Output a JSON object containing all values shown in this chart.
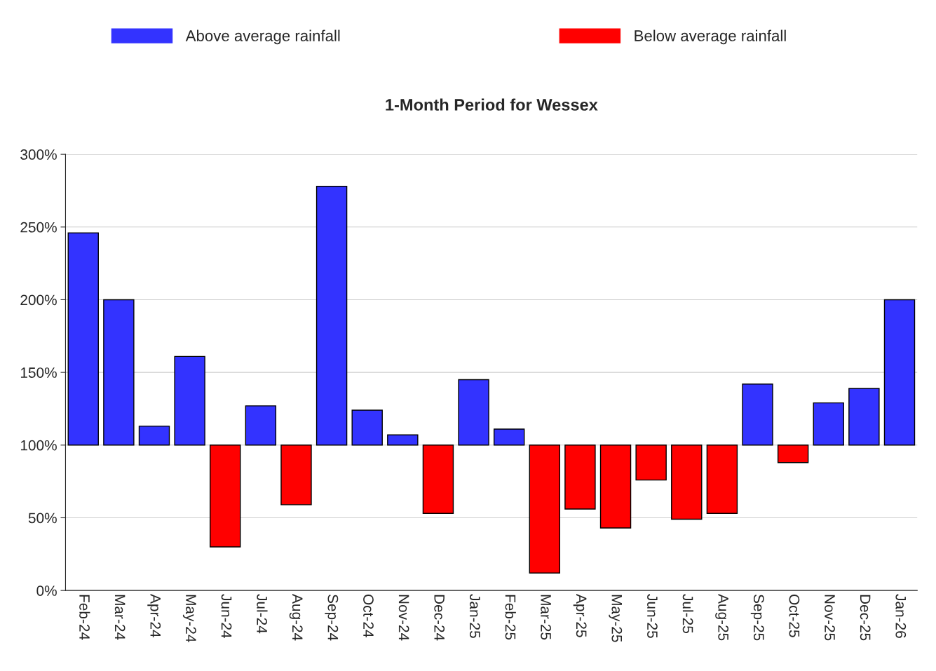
{
  "chart_data": {
    "type": "bar",
    "title": "1-Month Period for Wessex",
    "categories": [
      "Feb-24",
      "Mar-24",
      "Apr-24",
      "May-24",
      "Jun-24",
      "Jul-24",
      "Aug-24",
      "Sep-24",
      "Oct-24",
      "Nov-24",
      "Dec-24",
      "Jan-25",
      "Feb-25",
      "Mar-25",
      "Apr-25",
      "May-25",
      "Jun-25",
      "Jul-25",
      "Aug-25",
      "Sep-25",
      "Oct-25",
      "Nov-25",
      "Dec-25",
      "Jan-26"
    ],
    "series": [
      {
        "name": "Above average rainfall",
        "color": "#3333ff",
        "base": [
          100,
          100,
          100,
          100,
          null,
          100,
          null,
          100,
          100,
          100,
          null,
          100,
          100,
          null,
          null,
          null,
          null,
          null,
          null,
          100,
          null,
          100,
          100,
          100
        ],
        "values": [
          146,
          100,
          13,
          61,
          null,
          27,
          null,
          178,
          24,
          7,
          null,
          45,
          11,
          null,
          null,
          null,
          null,
          null,
          null,
          42,
          null,
          29,
          39,
          100
        ]
      },
      {
        "name": "Below average rainfall",
        "color": "#ff0000",
        "base": [
          null,
          null,
          null,
          null,
          100,
          null,
          100,
          null,
          null,
          null,
          100,
          null,
          null,
          100,
          100,
          100,
          100,
          100,
          100,
          null,
          100,
          null,
          null,
          null
        ],
        "values": [
          null,
          null,
          null,
          null,
          -70,
          null,
          -41,
          null,
          null,
          null,
          -47,
          null,
          null,
          -88,
          -44,
          -57,
          -24,
          -51,
          -47,
          null,
          -12,
          null,
          null,
          null
        ]
      }
    ],
    "ylim": [
      0,
      300
    ],
    "yticks": [
      {
        "value": 0,
        "label": "0%"
      },
      {
        "value": 50,
        "label": "50%"
      },
      {
        "value": 100,
        "label": "100%"
      },
      {
        "value": 150,
        "label": "150%"
      },
      {
        "value": 200,
        "label": "200%"
      },
      {
        "value": 250,
        "label": "250%"
      },
      {
        "value": 300,
        "label": "300%"
      }
    ],
    "grid": "y",
    "legend": "top"
  }
}
